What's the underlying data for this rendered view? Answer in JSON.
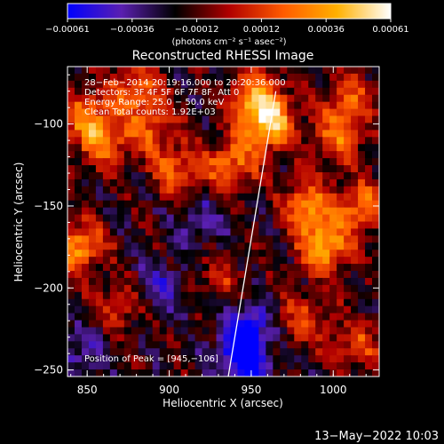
{
  "chart_data": {
    "type": "heatmap",
    "title": "Reconstructed RHESSI Image",
    "xlabel": "Heliocentric X (arcsec)",
    "ylabel": "Heliocentric Y (arcsec)",
    "xlim": [
      838,
      1028
    ],
    "ylim": [
      -254,
      -65
    ],
    "xticks": [
      {
        "value": 850,
        "label": "850"
      },
      {
        "value": 900,
        "label": "900"
      },
      {
        "value": 950,
        "label": "950"
      },
      {
        "value": 1000,
        "label": "1000"
      }
    ],
    "yticks": [
      {
        "value": -100,
        "label": "−100"
      },
      {
        "value": -150,
        "label": "−150"
      },
      {
        "value": -200,
        "label": "−200"
      },
      {
        "value": -250,
        "label": "−250"
      }
    ],
    "colorbar": {
      "range": [
        -0.00061,
        0.00061
      ],
      "tick_labels": [
        "−0.00061",
        "−0.00036",
        "−0.00012",
        "0.00012",
        "0.00036",
        "0.00061"
      ],
      "unit_label": "(photons cm⁻² s⁻¹ asec⁻²)",
      "colors": [
        "#0000ff",
        "#5a1fb0",
        "#000000",
        "#b00000",
        "#ff5a00",
        "#ffb000",
        "#ffffff"
      ]
    },
    "annotations": [
      "28−Feb−2014 20:19:16.000 to 20:20:36.000",
      "Detectors: 3F 4F 5F 6F 7F 8F, Att 0",
      "Energy Range: 25.0 − 50.0 keV",
      "Clean    Total counts: 1.92E+03"
    ],
    "peak_label": "Position of Peak = [945,−106]",
    "peak": [
      945,
      -106
    ],
    "limb_line": [
      [
        936,
        -254
      ],
      [
        965,
        -80
      ]
    ],
    "hotspots": [
      {
        "x": 960,
        "y": -100,
        "value": 0.00061
      },
      {
        "x": 953,
        "y": -83,
        "value": 0.00045
      },
      {
        "x": 938,
        "y": -125,
        "value": 0.0004
      },
      {
        "x": 995,
        "y": -175,
        "value": 0.00055
      },
      {
        "x": 985,
        "y": -150,
        "value": 0.00045
      },
      {
        "x": 1018,
        "y": -150,
        "value": 0.0004
      },
      {
        "x": 1003,
        "y": -108,
        "value": 0.00035
      },
      {
        "x": 880,
        "y": -80,
        "value": 0.00038
      },
      {
        "x": 860,
        "y": -110,
        "value": 0.0004
      },
      {
        "x": 845,
        "y": -175,
        "value": 0.00048
      },
      {
        "x": 848,
        "y": -95,
        "value": 0.00035
      },
      {
        "x": 905,
        "y": -130,
        "value": 0.00035
      },
      {
        "x": 890,
        "y": -105,
        "value": 0.0003
      },
      {
        "x": 982,
        "y": -220,
        "value": 0.0003
      },
      {
        "x": 1015,
        "y": -235,
        "value": 0.00028
      },
      {
        "x": 1010,
        "y": -85,
        "value": 0.0003
      },
      {
        "x": 870,
        "y": -210,
        "value": 0.00025
      },
      {
        "x": 930,
        "y": -195,
        "value": 0.0002
      },
      {
        "x": 945,
        "y": -245,
        "value": -0.00045
      },
      {
        "x": 948,
        "y": -225,
        "value": -0.0004
      },
      {
        "x": 895,
        "y": -200,
        "value": -0.00025
      },
      {
        "x": 845,
        "y": -240,
        "value": -0.0002
      },
      {
        "x": 920,
        "y": -160,
        "value": -0.00022
      }
    ]
  },
  "footer_date": "13−May−2022 10:03"
}
